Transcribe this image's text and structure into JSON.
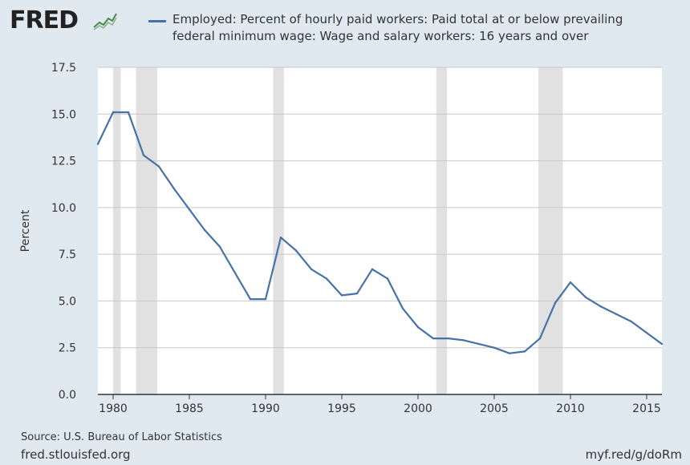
{
  "logo": {
    "text": "FRED",
    "icon": "fred-sparkline-logo-icon"
  },
  "legend": {
    "label": "Employed: Percent of hourly paid workers: Paid total at or below prevailing federal minimum wage: Wage and salary workers: 16 years and over"
  },
  "footer": {
    "source": "Source: U.S. Bureau of Labor Statistics",
    "site": "fred.stlouisfed.org",
    "shortlink": "myf.red/g/doRm"
  },
  "colors": {
    "background": "#e1e9f0",
    "plot_background": "#ffffff",
    "line": "#4572a7",
    "recession": "#e1e1e1",
    "grid": "#c8c8c8"
  },
  "chart_data": {
    "type": "line",
    "title": "",
    "xlabel": "",
    "ylabel": "Percent",
    "xlim": [
      1979,
      2016
    ],
    "ylim": [
      0,
      17.5
    ],
    "yticks": [
      0.0,
      2.5,
      5.0,
      7.5,
      10.0,
      12.5,
      15.0,
      17.5
    ],
    "ytick_labels": [
      "0.0",
      "2.5",
      "5.0",
      "7.5",
      "10.0",
      "12.5",
      "15.0",
      "17.5"
    ],
    "xticks": [
      1980,
      1985,
      1990,
      1995,
      2000,
      2005,
      2010,
      2015
    ],
    "xtick_labels": [
      "1980",
      "1985",
      "1990",
      "1995",
      "2000",
      "2005",
      "2010",
      "2015"
    ],
    "grid": true,
    "recessions": [
      [
        1980.0,
        1980.5
      ],
      [
        1981.5,
        1982.9
      ],
      [
        1990.5,
        1991.2
      ],
      [
        2001.2,
        2001.9
      ],
      [
        2007.9,
        2009.5
      ]
    ],
    "series": [
      {
        "name": "Employed: Percent of hourly paid workers: Paid total at or below prevailing federal minimum wage: Wage and salary workers: 16 years and over",
        "x": [
          1979,
          1980,
          1981,
          1982,
          1983,
          1984,
          1985,
          1986,
          1987,
          1988,
          1989,
          1990,
          1991,
          1992,
          1993,
          1994,
          1995,
          1996,
          1997,
          1998,
          1999,
          2000,
          2001,
          2002,
          2003,
          2004,
          2005,
          2006,
          2007,
          2008,
          2009,
          2010,
          2011,
          2012,
          2013,
          2014,
          2015,
          2016
        ],
        "values": [
          13.4,
          15.1,
          15.1,
          12.8,
          12.2,
          11.0,
          9.9,
          8.8,
          7.9,
          6.5,
          5.1,
          5.1,
          8.4,
          7.7,
          6.7,
          6.2,
          5.3,
          5.4,
          6.7,
          6.2,
          4.6,
          3.6,
          3.0,
          3.0,
          2.9,
          2.7,
          2.5,
          2.2,
          2.3,
          3.0,
          4.9,
          6.0,
          5.2,
          4.7,
          4.3,
          3.9,
          3.3,
          2.7
        ]
      }
    ]
  }
}
